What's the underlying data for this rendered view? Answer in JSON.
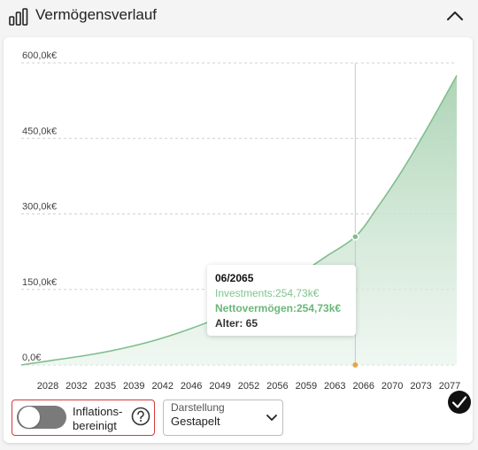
{
  "header": {
    "title": "Vermögensverlauf",
    "icon": "bar-chart-icon",
    "collapse_icon": "chevron-up-icon"
  },
  "chart_data": {
    "type": "area",
    "y_ticks": [
      "600,0k€",
      "450,0k€",
      "300,0k€",
      "150,0k€",
      "0,0€"
    ],
    "y_tick_values": [
      600,
      450,
      300,
      150,
      0
    ],
    "x_ticks": [
      "2028",
      "2032",
      "2035",
      "2039",
      "2042",
      "2046",
      "2049",
      "2052",
      "2056",
      "2059",
      "2063",
      "2066",
      "2070",
      "2073",
      "2077"
    ],
    "ylim": [
      0,
      600
    ],
    "xlim": [
      2026,
      2077.5
    ],
    "grid": true,
    "series": [
      {
        "color": "#7fbe8c",
        "x": [
          2026,
          2030,
          2034,
          2038,
          2042,
          2046,
          2050,
          2054,
          2058,
          2062,
          2065.5,
          2068,
          2071,
          2074,
          2077.5
        ],
        "values": [
          0,
          10,
          20,
          33,
          50,
          72,
          98,
          130,
          170,
          215,
          254.73,
          310,
          385,
          470,
          575
        ]
      }
    ],
    "tooltip": {
      "date": "06/2065",
      "investments": "Investments:254,73k€",
      "net_worth": "Nettovermögen:254,73k€",
      "age": "Alter: 65"
    },
    "hover_year": 2065.5,
    "hover_value": 254.73
  },
  "controls": {
    "inflation_label": "Inflations-\nbereinigt",
    "inflation_enabled": false,
    "help_icon": "question-circle-icon",
    "display_label": "Darstellung",
    "display_value": "Gestapelt",
    "check_icon": "checkmark-icon"
  },
  "colors": {
    "accent": "#7fbe8c",
    "error_border": "#d33a3a",
    "hover_marker": "#e0a84a"
  }
}
